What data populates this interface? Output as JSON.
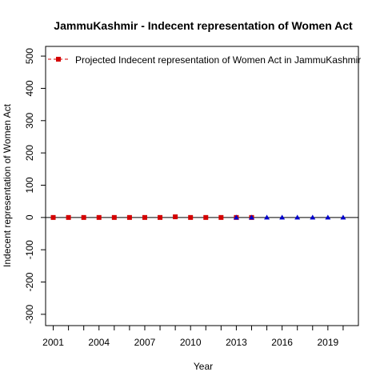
{
  "chart_data": {
    "type": "scatter",
    "title": "JammuKashmir  -  Indecent representation of Women Act",
    "xlabel": "Year",
    "ylabel": "Indecent representation of Women Act",
    "xlim": [
      2000.5,
      2021
    ],
    "ylim": [
      -335,
      530
    ],
    "x_ticks": [
      2001,
      2004,
      2007,
      2010,
      2013,
      2016,
      2019
    ],
    "x_minor_ticks": [
      2002,
      2003,
      2005,
      2006,
      2008,
      2009,
      2011,
      2012,
      2014,
      2015,
      2017,
      2018,
      2020
    ],
    "y_ticks": [
      -300,
      -200,
      -100,
      0,
      100,
      200,
      300,
      400,
      500
    ],
    "hline": 0,
    "legend": {
      "position": "top-left",
      "entries": [
        "Projected  Indecent representation of Women Act  in  JammuKashmir"
      ]
    },
    "series": [
      {
        "marker": "square",
        "color": "#d40000",
        "x": [
          2001,
          2002,
          2003,
          2004,
          2005,
          2006,
          2007,
          2008,
          2009,
          2010,
          2011,
          2012,
          2013,
          2014
        ],
        "y": [
          0,
          0,
          0,
          0,
          0,
          0,
          0,
          0,
          2,
          0,
          0,
          0,
          0,
          0
        ]
      },
      {
        "marker": "triangle",
        "color": "#0000cc",
        "x": [
          2013,
          2014,
          2015,
          2016,
          2017,
          2018,
          2019,
          2020
        ],
        "y": [
          0,
          0,
          0,
          0,
          0,
          0,
          0,
          0
        ]
      }
    ]
  }
}
